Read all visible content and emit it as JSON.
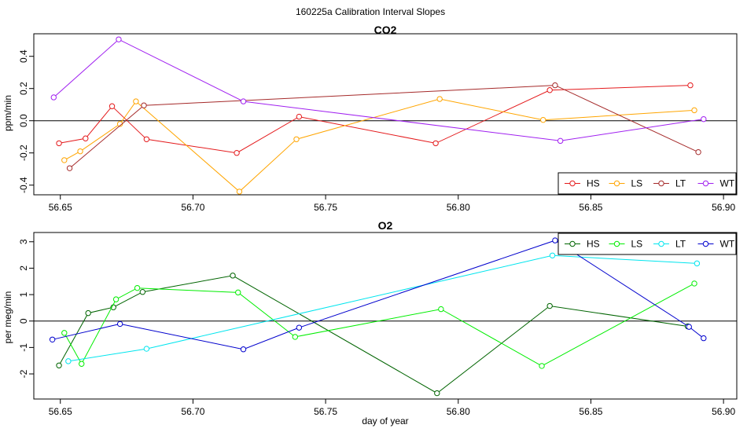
{
  "figure_title": "160225a   Calibration Interval Slopes",
  "chart_data": [
    {
      "type": "line",
      "title": "CO2",
      "xlabel": "",
      "ylabel": "ppm/min",
      "xlim": [
        56.64,
        56.905
      ],
      "ylim": [
        -0.46,
        0.54
      ],
      "xticks": [
        56.65,
        56.7,
        56.75,
        56.8,
        56.85,
        56.9
      ],
      "xtick_labels": [
        "56.65",
        "56.70",
        "56.75",
        "56.80",
        "56.85",
        "56.90"
      ],
      "yticks": [
        -0.4,
        -0.2,
        0.0,
        0.2,
        0.4
      ],
      "ytick_labels": [
        "-0.4",
        "-0.2",
        "0.0",
        "0.2",
        "0.4"
      ],
      "reference_line": 0,
      "legend_position": "bottom-right",
      "series": [
        {
          "name": "HS",
          "color": "#e41a1c",
          "x": [
            56.6495,
            56.6595,
            56.6695,
            56.6825,
            56.7165,
            56.74,
            56.7915,
            56.8345,
            56.8875
          ],
          "y": [
            -0.14,
            -0.11,
            0.09,
            -0.115,
            -0.2,
            0.025,
            -0.14,
            0.19,
            0.22
          ]
        },
        {
          "name": "LS",
          "color": "#ffa500",
          "x": [
            56.6515,
            56.6575,
            56.6725,
            56.6785,
            56.7175,
            56.739,
            56.793,
            56.832,
            56.889
          ],
          "y": [
            -0.245,
            -0.19,
            -0.02,
            0.12,
            -0.44,
            -0.115,
            0.135,
            0.005,
            0.065
          ]
        },
        {
          "name": "LT",
          "color": "#a52a2a",
          "x": [
            56.6535,
            56.6815,
            56.8365,
            56.8905
          ],
          "y": [
            -0.295,
            0.095,
            0.22,
            -0.195
          ]
        },
        {
          "name": "WT",
          "color": "#a020f0",
          "x": [
            56.6475,
            56.672,
            56.719,
            56.8385,
            56.8925
          ],
          "y": [
            0.145,
            0.505,
            0.12,
            -0.125,
            0.01
          ]
        }
      ]
    },
    {
      "type": "line",
      "title": "O2",
      "xlabel": "day of year",
      "ylabel": "per meg/min",
      "xlim": [
        56.64,
        56.905
      ],
      "ylim": [
        -2.95,
        3.35
      ],
      "xticks": [
        56.65,
        56.7,
        56.75,
        56.8,
        56.85,
        56.9
      ],
      "xtick_labels": [
        "56.65",
        "56.70",
        "56.75",
        "56.80",
        "56.85",
        "56.90"
      ],
      "yticks": [
        -2,
        -1,
        0,
        1,
        2,
        3
      ],
      "ytick_labels": [
        "-2",
        "-1",
        "0",
        "1",
        "2",
        "3"
      ],
      "reference_line": 0,
      "legend_position": "top-right",
      "series": [
        {
          "name": "HS",
          "color": "#006400",
          "x": [
            56.6495,
            56.6605,
            56.67,
            56.681,
            56.715,
            56.792,
            56.8345,
            56.8865
          ],
          "y": [
            -1.68,
            0.3,
            0.52,
            1.1,
            1.72,
            -2.73,
            0.57,
            -0.2
          ]
        },
        {
          "name": "LS",
          "color": "#00ee00",
          "x": [
            56.6515,
            56.658,
            56.671,
            56.679,
            56.717,
            56.7385,
            56.7935,
            56.8315,
            56.889
          ],
          "y": [
            -0.45,
            -1.62,
            0.82,
            1.25,
            1.08,
            -0.6,
            0.45,
            -1.7,
            1.42
          ]
        },
        {
          "name": "LT",
          "color": "#00e5ee",
          "x": [
            56.653,
            56.6825,
            56.8355,
            56.89
          ],
          "y": [
            -1.52,
            -1.05,
            2.48,
            2.18
          ]
        },
        {
          "name": "WT",
          "color": "#0000cd",
          "x": [
            56.647,
            56.6725,
            56.719,
            56.74,
            56.8365,
            56.887,
            56.8925
          ],
          "y": [
            -0.7,
            -0.11,
            -1.07,
            -0.25,
            3.05,
            -0.22,
            -0.65
          ]
        }
      ]
    }
  ]
}
